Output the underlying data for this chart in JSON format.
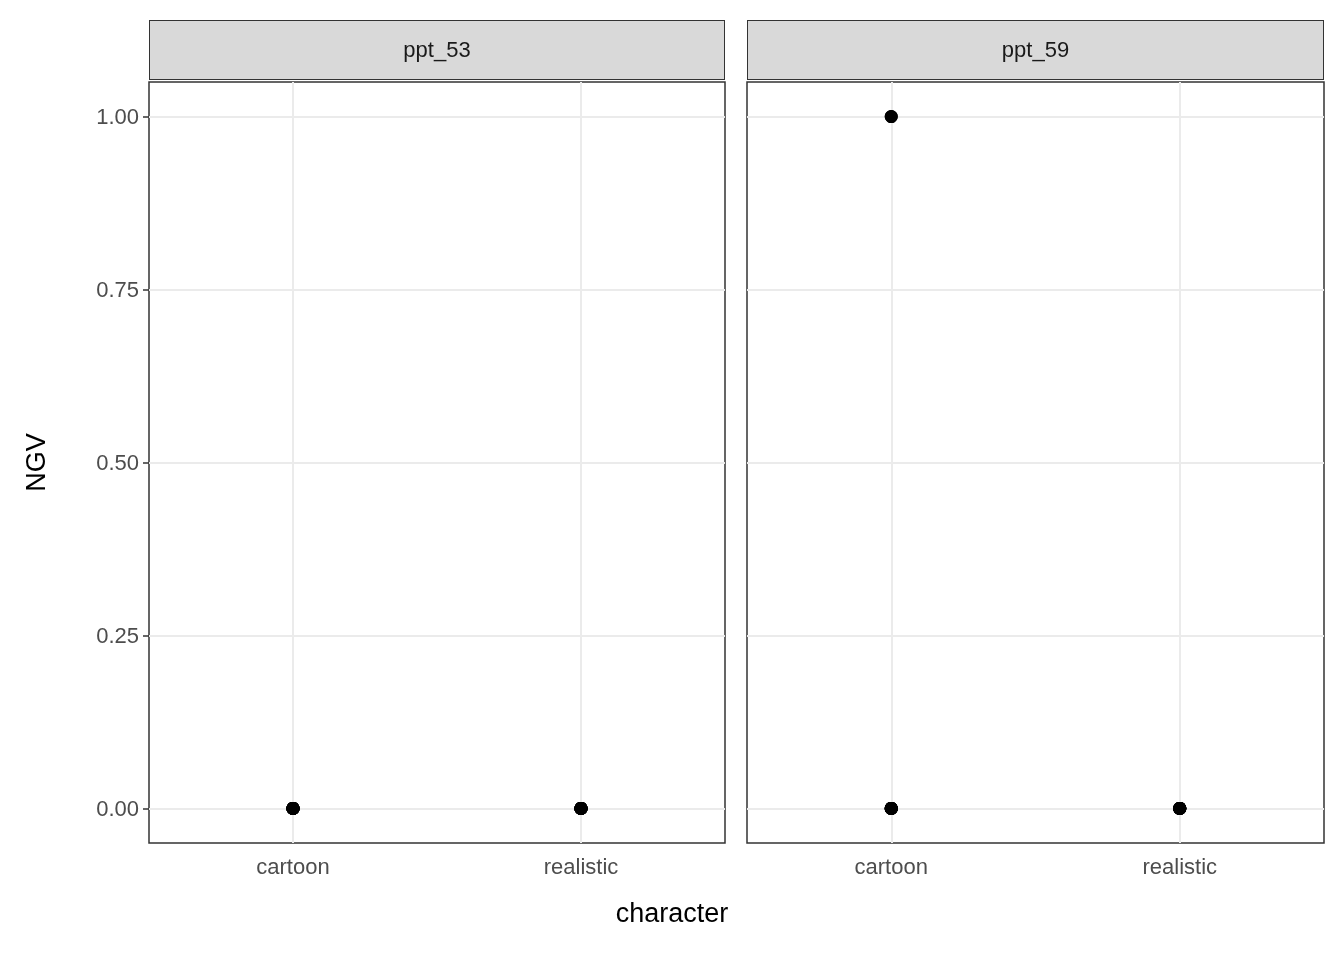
{
  "chart_data": [
    {
      "type": "scatter",
      "title": "ppt_53",
      "xlabel": "character",
      "ylabel": "NGV",
      "categories": [
        "cartoon",
        "realistic"
      ],
      "ylim": [
        -0.05,
        1.05
      ],
      "yticks": [
        {
          "value": 0,
          "label": "0.00"
        },
        {
          "value": 0.25,
          "label": "0.25"
        },
        {
          "value": 0.5,
          "label": "0.50"
        },
        {
          "value": 0.75,
          "label": "0.75"
        },
        {
          "value": 1,
          "label": "1.00"
        }
      ],
      "grid": true,
      "marker": "circle",
      "series": [
        {
          "color": "#000000",
          "x": [
            "cartoon",
            "cartoon",
            "cartoon",
            "cartoon",
            "cartoon",
            "cartoon",
            "cartoon",
            "cartoon",
            "cartoon",
            "realistic",
            "realistic",
            "realistic",
            "realistic",
            "realistic",
            "realistic",
            "realistic",
            "realistic",
            "realistic"
          ],
          "values": [
            0,
            0,
            0,
            0,
            0,
            0,
            0,
            0,
            0,
            0,
            0,
            0,
            0,
            0,
            0,
            0,
            0,
            0
          ]
        }
      ]
    },
    {
      "type": "scatter",
      "title": "ppt_59",
      "categories": [
        "cartoon",
        "realistic"
      ],
      "ylim": [
        -0.05,
        1.05
      ],
      "yticks": [
        0,
        0.25,
        0.5,
        0.75,
        1
      ],
      "tick_labels": "x",
      "grid": true,
      "marker": "circle",
      "series": [
        {
          "color": "#000000",
          "x": [
            "cartoon",
            "cartoon",
            "cartoon",
            "cartoon",
            "cartoon",
            "cartoon",
            "cartoon",
            "cartoon",
            "cartoon",
            "realistic",
            "realistic",
            "realistic",
            "realistic",
            "realistic",
            "realistic",
            "realistic",
            "realistic"
          ],
          "values": [
            0,
            0,
            0,
            0,
            0,
            0,
            0,
            1,
            1,
            0,
            0,
            0,
            0,
            0,
            0,
            0,
            0
          ]
        }
      ]
    }
  ]
}
